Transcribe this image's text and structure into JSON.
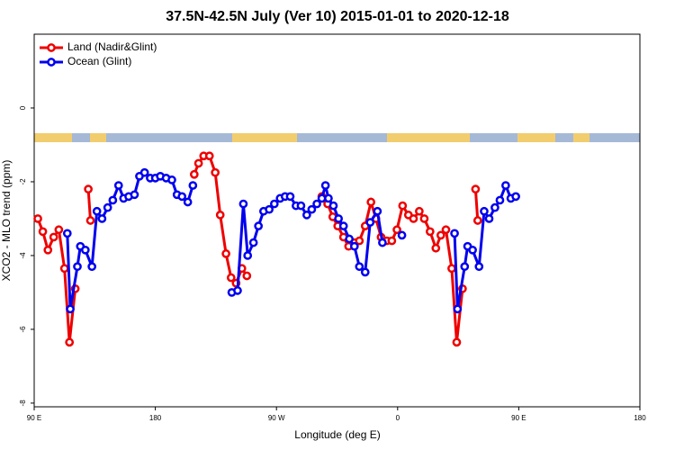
{
  "chart_data": {
    "type": "line",
    "title": "37.5N-42.5N July (Ver 10)   2015-01-01 to 2020-12-18",
    "x_label": "Longitude (deg E)",
    "y_label": "XCO2 - MLO trend (ppm)",
    "xlim": [
      90,
      540
    ],
    "xticks": [
      {
        "value": 90,
        "label": "90 E"
      },
      {
        "value": 180,
        "label": "180"
      },
      {
        "value": 270,
        "label": "90 W"
      },
      {
        "value": 360,
        "label": "0"
      },
      {
        "value": 450,
        "label": "90 E"
      },
      {
        "value": 540,
        "label": "180"
      }
    ],
    "ylim": [
      -8.1,
      2
    ],
    "yticks": [
      -8,
      -6,
      -4,
      -2,
      0
    ],
    "legend": "top-left",
    "series": [
      {
        "name": "Land (Nadir&Glint)",
        "color": "#ee0000",
        "x": [
          92.7,
          96.4,
          100.2,
          104.5,
          108.3,
          112.5,
          116.2,
          120.5,
          null,
          130.2,
          131.8,
          null,
          208.9,
          212.1,
          215.9,
          220.2,
          224.5,
          228.2,
          232.5,
          236.3,
          240,
          244.3,
          248,
          null,
          303.7,
          308,
          311.8,
          315.5,
          319.8,
          323.6,
          327.9,
          331.6,
          335.9,
          340.2,
          343.9,
          347.7,
          352,
          355.7,
          359.5,
          363.7,
          368,
          371.8,
          376.1,
          379.8,
          384.1,
          388.4,
          392.1,
          395.9,
          400.2,
          403.9,
          408.2,
          null,
          417.9,
          419.5
        ],
        "values": [
          -3.0,
          -3.35,
          -3.85,
          -3.5,
          -3.3,
          -4.35,
          -6.35,
          -4.9,
          null,
          -2.2,
          -3.05,
          null,
          -1.8,
          -1.5,
          -1.3,
          -1.3,
          -1.75,
          -2.9,
          -3.95,
          -4.6,
          -4.75,
          -4.35,
          -4.55,
          null,
          -2.4,
          -2.6,
          -2.95,
          -3.2,
          -3.5,
          -3.75,
          -3.65,
          -3.6,
          -3.2,
          -2.55,
          -3.0,
          -3.5,
          -3.6,
          -3.6,
          -3.3,
          -2.65,
          -2.9,
          -3.0,
          -2.8,
          -3.0,
          -3.35,
          -3.8,
          -3.45,
          -3.3,
          -4.35,
          -6.35,
          -4.9,
          null,
          -2.2,
          -3.05
        ]
      },
      {
        "name": "Ocean (Glint)",
        "color": "#0000ee",
        "x": [
          114.6,
          116.8,
          122.1,
          124.3,
          128,
          132.9,
          136.6,
          140.4,
          144.6,
          148.4,
          152.7,
          156.4,
          160.2,
          164.5,
          168.2,
          172,
          176.2,
          180,
          183.7,
          188,
          192.3,
          196.1,
          199.8,
          204.1,
          207.9,
          null,
          236.8,
          241.1,
          245.4,
          248.6,
          252.9,
          256.6,
          260.4,
          264.6,
          268.4,
          272.7,
          276.4,
          280.2,
          284.5,
          288.2,
          292.5,
          296.2,
          300,
          303.7,
          306.4,
          308.6,
          312.3,
          316.1,
          319.8,
          324.1,
          327.9,
          331.6,
          335.9,
          339.6,
          345,
          348.7,
          null,
          363.2,
          null,
          402.3,
          404.5,
          409.8,
          412,
          415.7,
          420.5,
          424.3,
          428,
          432.3,
          436,
          440.3,
          444.1,
          447.8
        ],
        "values": [
          -3.4,
          -5.45,
          -4.3,
          -3.75,
          -3.85,
          -4.3,
          -2.8,
          -3.0,
          -2.7,
          -2.5,
          -2.1,
          -2.45,
          -2.4,
          -2.35,
          -1.85,
          -1.75,
          -1.9,
          -1.9,
          -1.85,
          -1.9,
          -1.95,
          -2.35,
          -2.4,
          -2.55,
          -2.1,
          null,
          -5.0,
          -4.95,
          -2.6,
          -4.0,
          -3.65,
          -3.2,
          -2.8,
          -2.75,
          -2.6,
          -2.45,
          -2.4,
          -2.4,
          -2.65,
          -2.65,
          -2.9,
          -2.75,
          -2.6,
          -2.45,
          -2.1,
          -2.45,
          -2.65,
          -3.0,
          -3.2,
          -3.55,
          -3.75,
          -4.3,
          -4.45,
          -3.1,
          -2.8,
          -3.65,
          null,
          -3.45,
          null,
          -3.4,
          -5.45,
          -4.3,
          -3.75,
          -3.85,
          -4.3,
          -2.8,
          -3.0,
          -2.7,
          -2.5,
          -2.1,
          -2.45,
          -2.4
        ]
      }
    ]
  }
}
